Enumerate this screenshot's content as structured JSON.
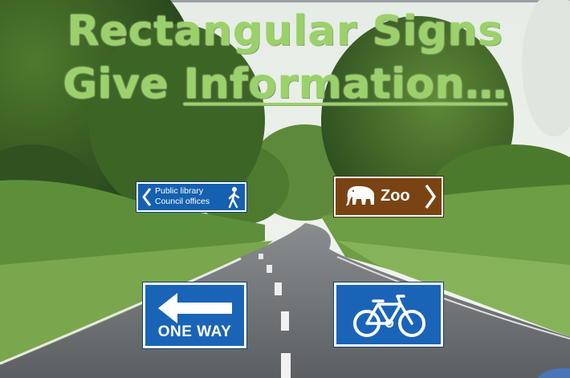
{
  "slide": {
    "title_line1": "Rectangular Signs",
    "title_line2_prefix": "Give ",
    "title_line2_underlined": "Information…"
  },
  "signs": {
    "library": {
      "line1": "Public library",
      "line2": "Council offices",
      "icon": "pedestrian-icon",
      "color": "#1560b0"
    },
    "zoo": {
      "label": "Zoo",
      "icon": "elephant-icon",
      "color": "#7a4314"
    },
    "one_way": {
      "label": "ONE WAY",
      "icon": "arrow-left-icon",
      "color": "#1a64b8"
    },
    "cycle": {
      "icon": "bicycle-icon",
      "color": "#1a64b8"
    }
  },
  "colors": {
    "title": "#9bd16a"
  }
}
